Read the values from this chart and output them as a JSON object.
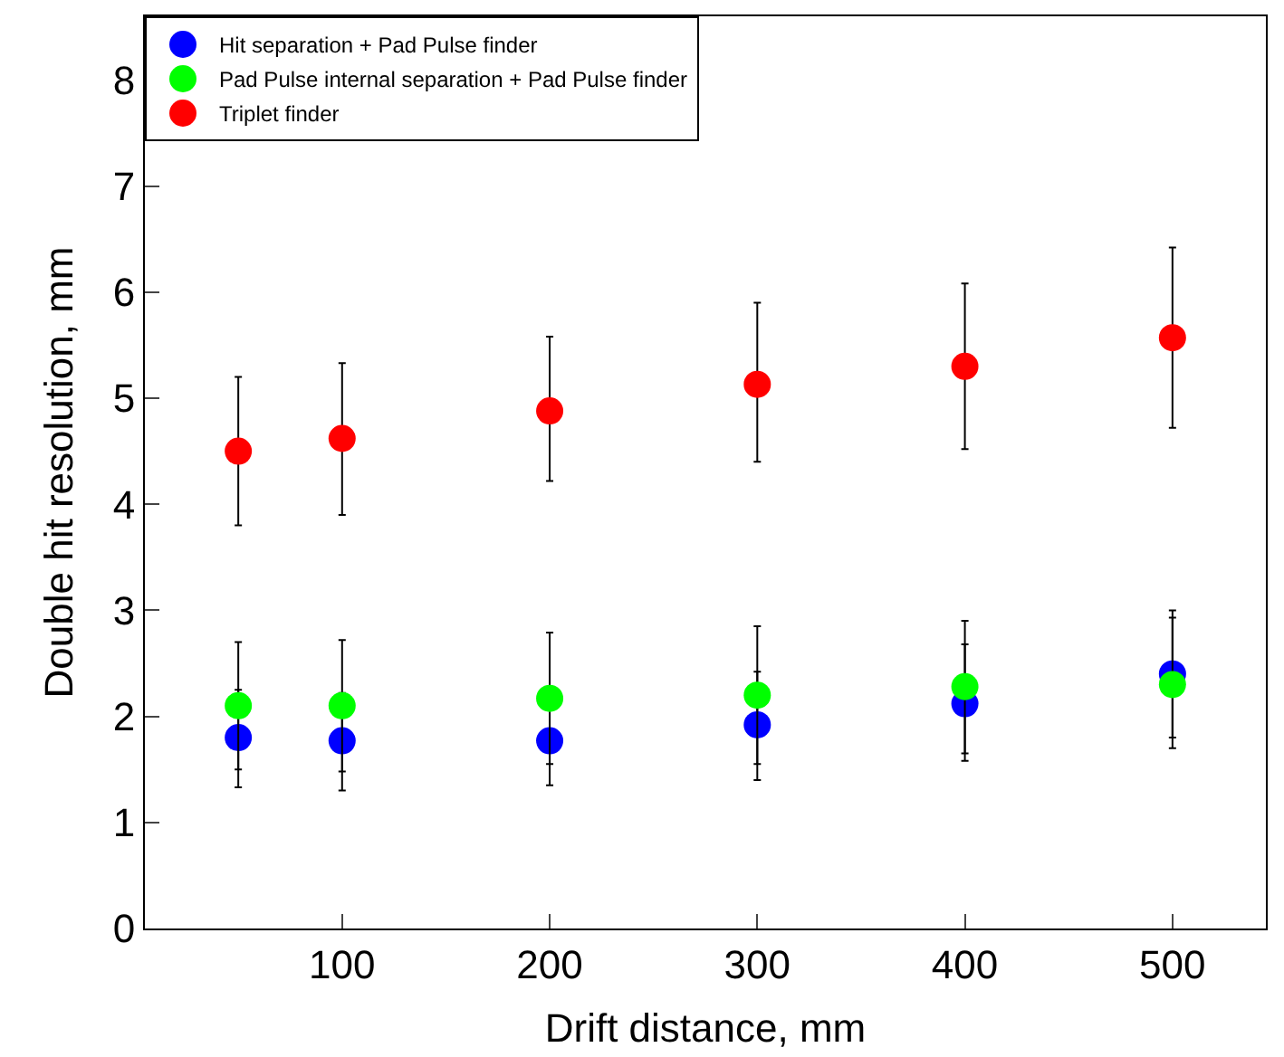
{
  "chart_data": {
    "type": "scatter",
    "xlabel": "Drift distance, mm",
    "ylabel": "Double hit resolution, mm",
    "x": [
      50,
      100,
      200,
      300,
      400,
      500
    ],
    "series": [
      {
        "name": "Hit separation + Pad Pulse finder",
        "color": "#0000ff",
        "values": [
          1.8,
          1.77,
          1.77,
          1.92,
          2.12,
          2.4
        ],
        "errors": [
          [
            1.33,
            2.25
          ],
          [
            1.3,
            2.22
          ],
          [
            1.35,
            1.77
          ],
          [
            1.4,
            2.42
          ],
          [
            1.58,
            2.68
          ],
          [
            1.8,
            3.0
          ]
        ]
      },
      {
        "name": "Pad Pulse internal separation + Pad Pulse finder",
        "color": "#00ff00",
        "values": [
          2.1,
          2.1,
          2.17,
          2.2,
          2.28,
          2.3
        ],
        "errors": [
          [
            1.5,
            2.7
          ],
          [
            1.48,
            2.72
          ],
          [
            1.55,
            2.79
          ],
          [
            1.55,
            2.85
          ],
          [
            1.65,
            2.9
          ],
          [
            1.7,
            2.93
          ]
        ]
      },
      {
        "name": "Triplet finder",
        "color": "#ff0000",
        "values": [
          4.5,
          4.62,
          4.88,
          5.13,
          5.3,
          5.57
        ],
        "errors": [
          [
            3.8,
            5.2
          ],
          [
            3.9,
            5.33
          ],
          [
            4.22,
            5.58
          ],
          [
            4.4,
            5.9
          ],
          [
            4.52,
            6.08
          ],
          [
            4.72,
            6.42
          ]
        ]
      }
    ],
    "xlim": [
      5,
      545
    ],
    "xticks": [
      100,
      200,
      300,
      400,
      500
    ],
    "ylim": [
      0,
      8.6
    ],
    "yticks": [
      0,
      1,
      2,
      3,
      4,
      5,
      6,
      7,
      8
    ],
    "legend": "top left",
    "marker": "circle"
  }
}
